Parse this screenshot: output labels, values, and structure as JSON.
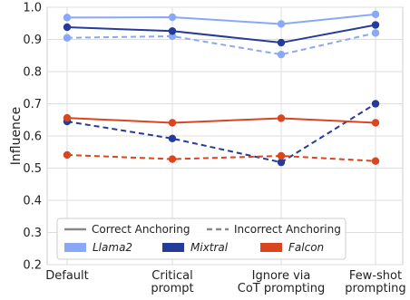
{
  "chart_data": {
    "type": "line",
    "title": "",
    "xlabel": "",
    "ylabel": "Influence",
    "ylim": [
      0.2,
      1.0
    ],
    "yticks": [
      "0.2",
      "0.3",
      "0.4",
      "0.5",
      "0.6",
      "0.7",
      "0.8",
      "0.9",
      "1.0"
    ],
    "grid": true,
    "legend_placement": "bottom-center",
    "categories": [
      [
        "Default"
      ],
      [
        "Critical",
        "prompt"
      ],
      [
        "Ignore via",
        "CoT prompting"
      ],
      [
        "Few-shot",
        "prompting"
      ]
    ],
    "style_legend": [
      {
        "label": "Correct Anchoring",
        "dash": "solid"
      },
      {
        "label": "Incorrect Anchoring",
        "dash": "dashed"
      }
    ],
    "model_legend": [
      {
        "label": "Llama2",
        "color": "#89a8f6"
      },
      {
        "label": "Mixtral",
        "color": "#253b9a"
      },
      {
        "label": "Falcon",
        "color": "#d9451f"
      }
    ],
    "series": [
      {
        "model": "Llama2",
        "anchoring": "Correct Anchoring",
        "color": "#89a8f6",
        "dash": "solid",
        "values": [
          0.968,
          0.969,
          0.948,
          0.978
        ]
      },
      {
        "model": "Llama2",
        "anchoring": "Incorrect Anchoring",
        "color": "#89a8f6",
        "dash": "dashed",
        "values": [
          0.905,
          0.91,
          0.853,
          0.92
        ]
      },
      {
        "model": "Mixtral",
        "anchoring": "Correct Anchoring",
        "color": "#253b9a",
        "dash": "solid",
        "values": [
          0.938,
          0.926,
          0.89,
          0.945
        ]
      },
      {
        "model": "Mixtral",
        "anchoring": "Incorrect Anchoring",
        "color": "#253b9a",
        "dash": "dashed",
        "values": [
          0.645,
          0.592,
          0.518,
          0.7
        ]
      },
      {
        "model": "Falcon",
        "anchoring": "Correct Anchoring",
        "color": "#d9451f",
        "dash": "solid",
        "values": [
          0.656,
          0.641,
          0.655,
          0.641
        ]
      },
      {
        "model": "Falcon",
        "anchoring": "Incorrect Anchoring",
        "color": "#d9451f",
        "dash": "dashed",
        "values": [
          0.541,
          0.528,
          0.538,
          0.522
        ]
      }
    ]
  }
}
